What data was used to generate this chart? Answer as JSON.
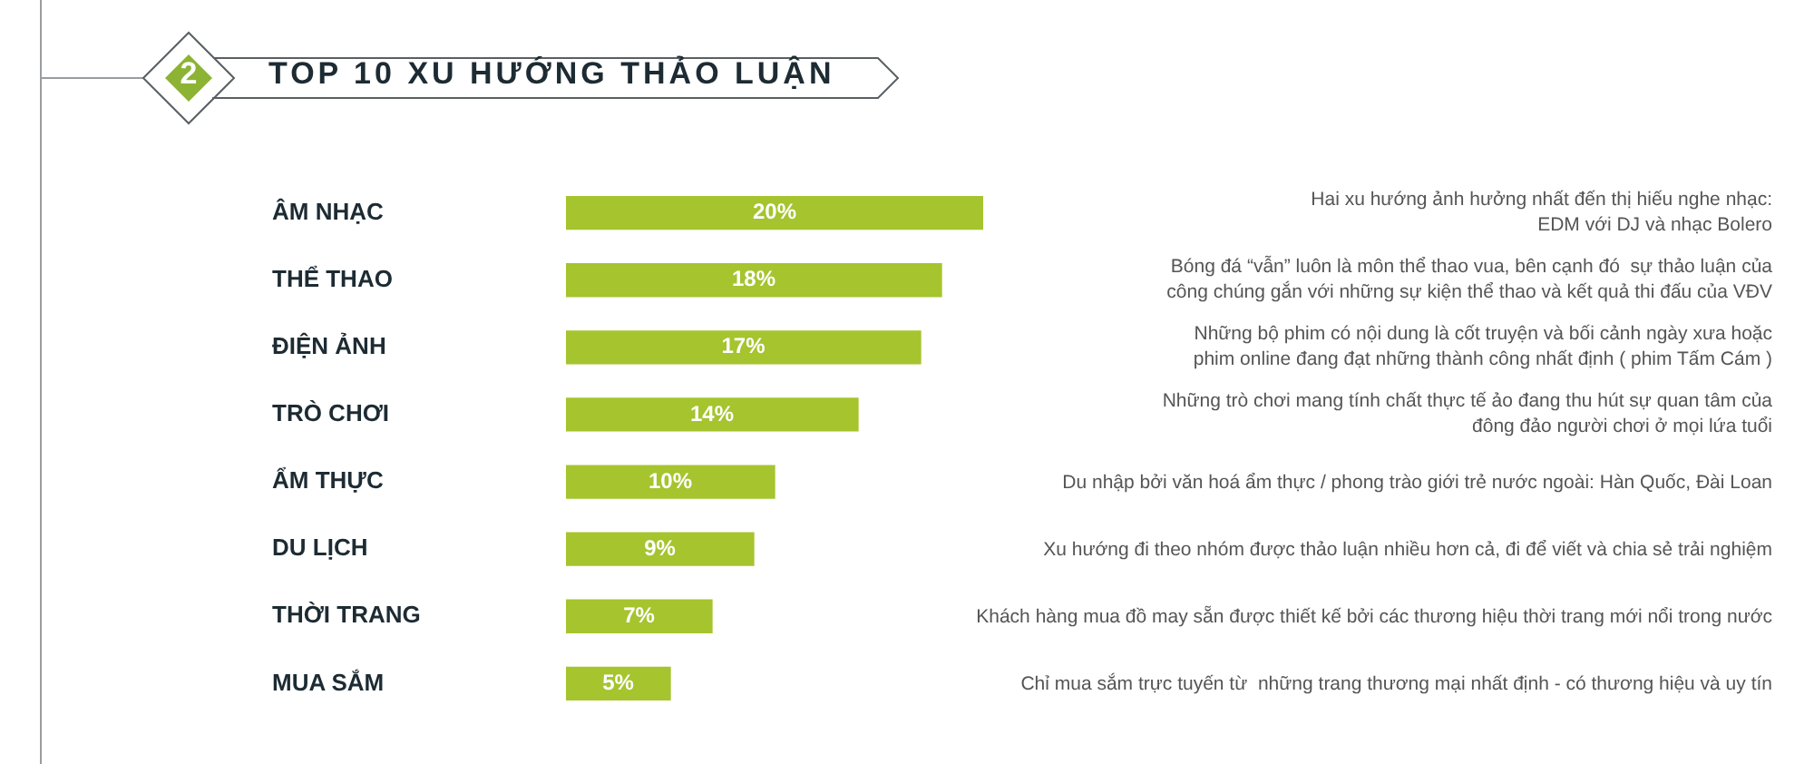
{
  "chart_data": {
    "type": "bar",
    "orientation": "horizontal",
    "title": "TOP 10 XU HƯỚNG THẢO LUẬN",
    "categories": [
      "ÂM NHẠC",
      "THỂ THAO",
      "ĐIỆN ẢNH",
      "TRÒ CHƠI",
      "ẨM THỰC",
      "DU LỊCH",
      "THỜI TRANG",
      "MUA SẮM"
    ],
    "values": [
      20,
      18,
      17,
      14,
      10,
      9,
      7,
      5
    ],
    "value_labels": [
      "20%",
      "18%",
      "17%",
      "14%",
      "10%",
      "9%",
      "7%",
      "5%"
    ],
    "color": "#a5c42e",
    "annotations": [
      "2",
      "Hai xu hướng ảnh hưởng nhất đến thị hiếu nghe nhạc:\nEDM với DJ và nhạc Bolero",
      "Bóng đá “vẫn” luôn là môn thể thao vua, bên cạnh đó  sự thảo luận của\ncông chúng gắn với những sự kiện thể thao và kết quả thi đấu của VĐV",
      "Những bộ phim có nội dung là cốt truyện và bối cảnh ngày xưa hoặc\nphim online đang đạt những thành công nhất định ( phim Tấm Cám )",
      "Những trò chơi mang tính chất thực tế ảo đang thu hút sự quan tâm của\nđông đảo người chơi ở mọi lứa tuổi",
      "Du nhập bởi văn hoá ẩm thực / phong trào giới trẻ nước ngoài: Hàn Quốc, Đài Loan",
      "Xu hướng đi theo nhóm được thảo luận nhiều hơn cả, đi để viết và chia sẻ trải nghiệm",
      "Khách hàng mua đồ may sẵn được thiết kế bởi các thương hiệu thời trang mới nổi trong nước",
      "Chỉ mua sắm trực tuyến từ  những trang thương mại nhất định - có thương hiệu và uy tín"
    ]
  }
}
